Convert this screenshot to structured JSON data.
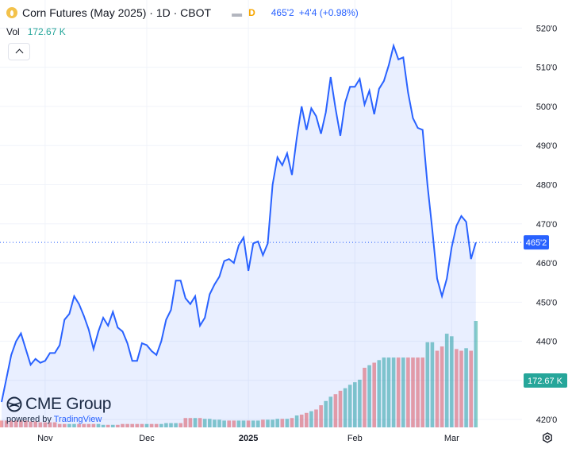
{
  "header": {
    "title": "Corn Futures (May 2025) · 1D · CBOT",
    "interval_badge": "D",
    "last_price": "465'2",
    "change": "+4'4 (+0.98%)",
    "vol_label": "Vol",
    "vol_value": "172.67 K"
  },
  "logo": {
    "brand": "CME Group",
    "powered_by": "powered by ",
    "powered_brand": "TradingView"
  },
  "colors": {
    "line": "#2962ff",
    "area_fill": "#2962ff",
    "volume_up": "#26a69a",
    "volume_down": "#ef5350",
    "price_label_bg": "#2962ff",
    "volume_label_bg": "#26a69a"
  },
  "icons": [
    "corn-symbol-icon",
    "chevron-up-icon",
    "cme-globe-icon",
    "settings-icon"
  ],
  "chart_data": {
    "type": "area",
    "x_ticks": [
      "Nov",
      "Dec",
      "2025",
      "Feb",
      "Mar"
    ],
    "x_tick_index": [
      9,
      30,
      51,
      73,
      93
    ],
    "y_ticks": [
      "420'0",
      "430'0",
      "440'0",
      "450'0",
      "460'0",
      "470'0",
      "480'0",
      "490'0",
      "500'0",
      "510'0",
      "520'0"
    ],
    "y_tick_values": [
      420,
      430,
      440,
      450,
      460,
      470,
      480,
      490,
      500,
      510,
      520
    ],
    "ylim": [
      418,
      521.5
    ],
    "last_price_label": "465'2",
    "last_price": 465.25,
    "volume_label": "172.67 K",
    "series": [
      {
        "values": [
          424.5,
          430.5,
          436.5,
          440.0,
          442.0,
          438.0,
          434.0,
          435.5,
          434.5,
          435.0,
          437.0,
          437.0,
          439.0,
          445.5,
          447.0,
          451.5,
          449.5,
          446.5,
          443.0,
          438.0,
          442.5,
          446.0,
          444.0,
          447.5,
          443.5,
          442.5,
          439.5,
          435.0,
          435.0,
          439.5,
          439.0,
          437.5,
          436.5,
          440.0,
          445.5,
          448.0,
          455.5,
          455.5,
          451.0,
          449.5,
          451.5,
          444.0,
          446.0,
          452.0,
          454.5,
          456.5,
          460.5,
          461.0,
          460.0,
          464.5,
          466.5,
          458.0,
          465.0,
          465.5,
          462.0,
          465.0,
          480.0,
          487.0,
          485.0,
          488.0,
          482.5,
          492.0,
          500.0,
          494.0,
          499.5,
          497.5,
          493.0,
          498.5,
          507.5,
          499.5,
          492.5,
          501.0,
          505.0,
          505.0,
          507.0,
          500.5,
          504.0,
          498.0,
          504.5,
          506.5,
          510.5,
          515.5,
          512.0,
          512.5,
          503.5,
          497.0,
          494.5,
          494.0,
          480.0,
          468.5,
          456.0,
          451.5,
          456.0,
          464.0,
          469.5,
          472.0,
          470.5,
          461.0,
          465.25
        ]
      }
    ],
    "volume": {
      "values": [
        8,
        8,
        8,
        8,
        8,
        8,
        7,
        7,
        6,
        6,
        6,
        6,
        4,
        4,
        4,
        4,
        4,
        4,
        4,
        4,
        4,
        3,
        3,
        3,
        3,
        4,
        4,
        4,
        4,
        4,
        4,
        4,
        4,
        4,
        5,
        5,
        5,
        5,
        11,
        11,
        11,
        11,
        10,
        10,
        9,
        9,
        8,
        8,
        8,
        8,
        8,
        8,
        8,
        8,
        9,
        9,
        9,
        10,
        10,
        10,
        11,
        14,
        15,
        17,
        19,
        21,
        26,
        31,
        36,
        39,
        43,
        46,
        50,
        53,
        56,
        70,
        73,
        76,
        79,
        82,
        82,
        82,
        82,
        82,
        82,
        82,
        82,
        82,
        100,
        100,
        90,
        95,
        110,
        107,
        92,
        90,
        93,
        90,
        125
      ],
      "up": [
        false,
        false,
        false,
        false,
        false,
        false,
        false,
        false,
        false,
        false,
        false,
        false,
        false,
        false,
        true,
        true,
        false,
        false,
        false,
        false,
        true,
        true,
        false,
        true,
        false,
        false,
        false,
        false,
        false,
        false,
        true,
        false,
        false,
        true,
        true,
        true,
        true,
        false,
        false,
        false,
        true,
        false,
        true,
        true,
        true,
        true,
        true,
        false,
        false,
        true,
        true,
        false,
        true,
        true,
        false,
        true,
        true,
        true,
        false,
        true,
        false,
        true,
        false,
        false,
        true,
        false,
        false,
        true,
        true,
        false,
        false,
        true,
        true,
        true,
        true,
        false,
        true,
        false,
        true,
        true,
        true,
        true,
        false,
        true,
        false,
        false,
        false,
        false,
        true,
        true,
        false,
        false,
        true,
        true,
        false,
        false,
        true,
        false,
        true
      ]
    }
  }
}
